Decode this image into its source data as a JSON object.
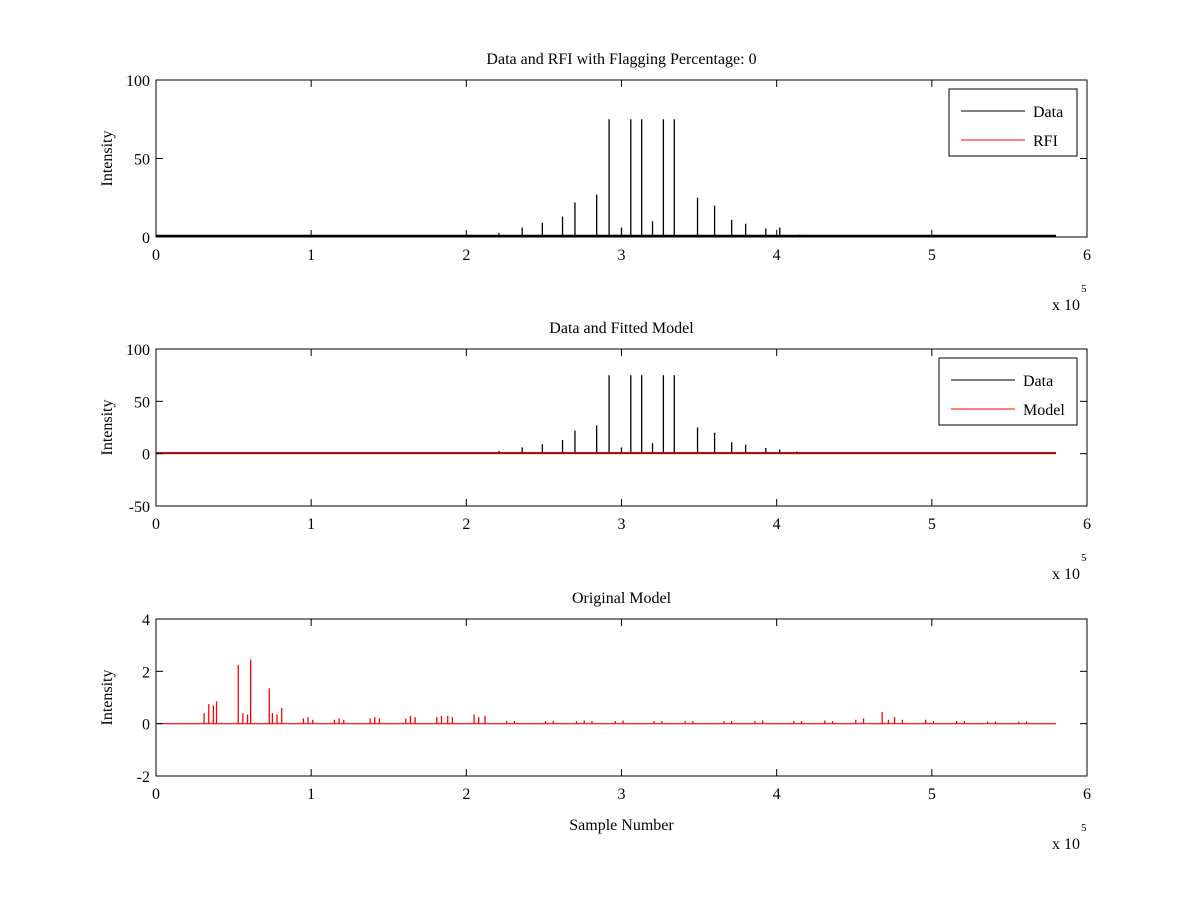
{
  "chart_data": [
    {
      "type": "line",
      "title": "Data and RFI with Flagging Percentage: 0",
      "xlabel": "",
      "ylabel": "Intensity",
      "xlim": [
        0,
        600000
      ],
      "ylim": [
        0,
        100
      ],
      "xticks": [
        0,
        1,
        2,
        3,
        4,
        5,
        6
      ],
      "yticks": [
        0,
        50,
        100
      ],
      "x_multiplier": "x 10",
      "x_multiplier_exp": "5",
      "baseline": 0.8,
      "legend": [
        "Data",
        "RFI"
      ],
      "legend_position": "top-right",
      "series": [
        {
          "name": "Data",
          "color": "#000000",
          "spikes": [
            [
              50000,
              0.8
            ],
            [
              100000,
              0.8
            ],
            [
              150000,
              0.9
            ],
            [
              200000,
              1.0
            ],
            [
              221000,
              2.5
            ],
            [
              236000,
              6.0
            ],
            [
              249000,
              9.0
            ],
            [
              262000,
              13.0
            ],
            [
              270000,
              22.0
            ],
            [
              284000,
              27.0
            ],
            [
              292000,
              75.0
            ],
            [
              300000,
              6.0
            ],
            [
              306000,
              75.0
            ],
            [
              313000,
              75.0
            ],
            [
              320000,
              10.0
            ],
            [
              327000,
              75.0
            ],
            [
              334000,
              75.0
            ],
            [
              349000,
              25.0
            ],
            [
              360000,
              20.0
            ],
            [
              371000,
              11.0
            ],
            [
              380000,
              8.5
            ],
            [
              393000,
              5.5
            ],
            [
              402000,
              6.0
            ],
            [
              415000,
              1.5
            ],
            [
              430000,
              1.0
            ],
            [
              480000,
              0.8
            ],
            [
              540000,
              0.8
            ]
          ]
        },
        {
          "name": "RFI",
          "color": "#ff0000",
          "spikes": []
        }
      ]
    },
    {
      "type": "line",
      "title": "Data and Fitted Model",
      "xlabel": "",
      "ylabel": "Intensity",
      "xlim": [
        0,
        600000
      ],
      "ylim": [
        -50,
        100
      ],
      "xticks": [
        0,
        1,
        2,
        3,
        4,
        5,
        6
      ],
      "yticks": [
        -50,
        0,
        50,
        100
      ],
      "x_multiplier": "x 10",
      "x_multiplier_exp": "5",
      "baseline": 0.5,
      "legend": [
        "Data",
        "Model"
      ],
      "legend_position": "top-right",
      "series": [
        {
          "name": "Data",
          "color": "#000000",
          "spikes": [
            [
              221000,
              2.5
            ],
            [
              236000,
              6.0
            ],
            [
              249000,
              9.0
            ],
            [
              262000,
              13.0
            ],
            [
              270000,
              22.0
            ],
            [
              284000,
              27.0
            ],
            [
              292000,
              75.0
            ],
            [
              300000,
              6.0
            ],
            [
              306000,
              75.0
            ],
            [
              313000,
              75.0
            ],
            [
              320000,
              10.0
            ],
            [
              327000,
              75.0
            ],
            [
              334000,
              75.0
            ],
            [
              349000,
              25.0
            ],
            [
              360000,
              20.0
            ],
            [
              371000,
              11.0
            ],
            [
              380000,
              8.5
            ],
            [
              393000,
              5.5
            ],
            [
              402000,
              4.0
            ],
            [
              413000,
              2.0
            ]
          ]
        },
        {
          "name": "Model",
          "color": "#ff0000",
          "spikes": []
        }
      ]
    },
    {
      "type": "line",
      "title": "Original Model",
      "xlabel": "Sample Number",
      "ylabel": "Intensity",
      "xlim": [
        0,
        600000
      ],
      "ylim": [
        -2,
        4
      ],
      "xticks": [
        0,
        1,
        2,
        3,
        4,
        5,
        6
      ],
      "yticks": [
        -2,
        0,
        2,
        4
      ],
      "x_multiplier": "x 10",
      "x_multiplier_exp": "5",
      "baseline": 0.0,
      "legend": [],
      "series": [
        {
          "name": "",
          "color": "#ff0000",
          "spikes": [
            [
              31000,
              0.4
            ],
            [
              34000,
              0.75
            ],
            [
              37000,
              0.7
            ],
            [
              39000,
              0.85
            ],
            [
              53000,
              2.25
            ],
            [
              56000,
              0.4
            ],
            [
              59000,
              0.35
            ],
            [
              61000,
              2.45
            ],
            [
              73000,
              1.35
            ],
            [
              75000,
              0.4
            ],
            [
              78000,
              0.35
            ],
            [
              81000,
              0.6
            ],
            [
              95000,
              0.2
            ],
            [
              98000,
              0.25
            ],
            [
              101000,
              0.15
            ],
            [
              115000,
              0.15
            ],
            [
              118000,
              0.2
            ],
            [
              121000,
              0.15
            ],
            [
              138000,
              0.2
            ],
            [
              141000,
              0.25
            ],
            [
              144000,
              0.2
            ],
            [
              161000,
              0.2
            ],
            [
              164000,
              0.3
            ],
            [
              167000,
              0.25
            ],
            [
              181000,
              0.25
            ],
            [
              184000,
              0.3
            ],
            [
              188000,
              0.3
            ],
            [
              191000,
              0.25
            ],
            [
              205000,
              0.35
            ],
            [
              208000,
              0.25
            ],
            [
              212000,
              0.3
            ],
            [
              226000,
              0.1
            ],
            [
              231000,
              0.1
            ],
            [
              251000,
              0.1
            ],
            [
              256000,
              0.1
            ],
            [
              271000,
              0.1
            ],
            [
              276000,
              0.12
            ],
            [
              281000,
              0.1
            ],
            [
              296000,
              0.1
            ],
            [
              301000,
              0.12
            ],
            [
              321000,
              0.1
            ],
            [
              326000,
              0.1
            ],
            [
              341000,
              0.1
            ],
            [
              346000,
              0.1
            ],
            [
              366000,
              0.1
            ],
            [
              371000,
              0.1
            ],
            [
              386000,
              0.1
            ],
            [
              391000,
              0.12
            ],
            [
              411000,
              0.1
            ],
            [
              416000,
              0.1
            ],
            [
              431000,
              0.12
            ],
            [
              436000,
              0.1
            ],
            [
              451000,
              0.15
            ],
            [
              456000,
              0.2
            ],
            [
              468000,
              0.45
            ],
            [
              472000,
              0.15
            ],
            [
              476000,
              0.25
            ],
            [
              481000,
              0.15
            ],
            [
              496000,
              0.15
            ],
            [
              501000,
              0.1
            ],
            [
              516000,
              0.1
            ],
            [
              521000,
              0.1
            ],
            [
              536000,
              0.08
            ],
            [
              541000,
              0.08
            ],
            [
              556000,
              0.08
            ],
            [
              561000,
              0.08
            ]
          ]
        }
      ]
    }
  ]
}
